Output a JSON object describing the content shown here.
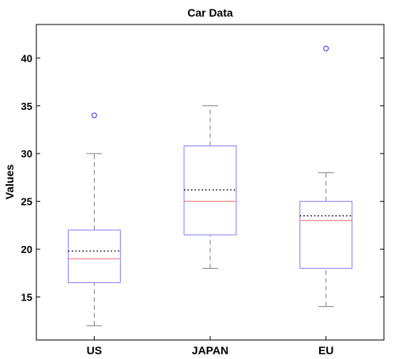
{
  "chart_data": {
    "type": "box",
    "title": "Car Data",
    "xlabel": "",
    "ylabel": "Values",
    "ylim": [
      10.5,
      43.5
    ],
    "yticks": [
      15,
      20,
      25,
      30,
      35,
      40
    ],
    "grid": false,
    "colors": {
      "box": "#7f7fff",
      "median": "#ff6b6b",
      "mean": "#000000",
      "whisker": "#808080",
      "outlier": "#3333ff",
      "axis": "#000000"
    },
    "categories": [
      "US",
      "JAPAN",
      "EU"
    ],
    "boxes": [
      {
        "name": "US",
        "whisker_low": 12,
        "q1": 16.5,
        "median": 19,
        "q3": 22,
        "whisker_high": 30,
        "mean": 19.8,
        "outliers": [
          34
        ]
      },
      {
        "name": "JAPAN",
        "whisker_low": 18,
        "q1": 21.5,
        "median": 25,
        "q3": 30.8,
        "whisker_high": 35,
        "mean": 26.2,
        "outliers": []
      },
      {
        "name": "EU",
        "whisker_low": 14,
        "q1": 18,
        "median": 23,
        "q3": 25,
        "whisker_high": 28,
        "mean": 23.5,
        "outliers": [
          41
        ]
      }
    ]
  }
}
